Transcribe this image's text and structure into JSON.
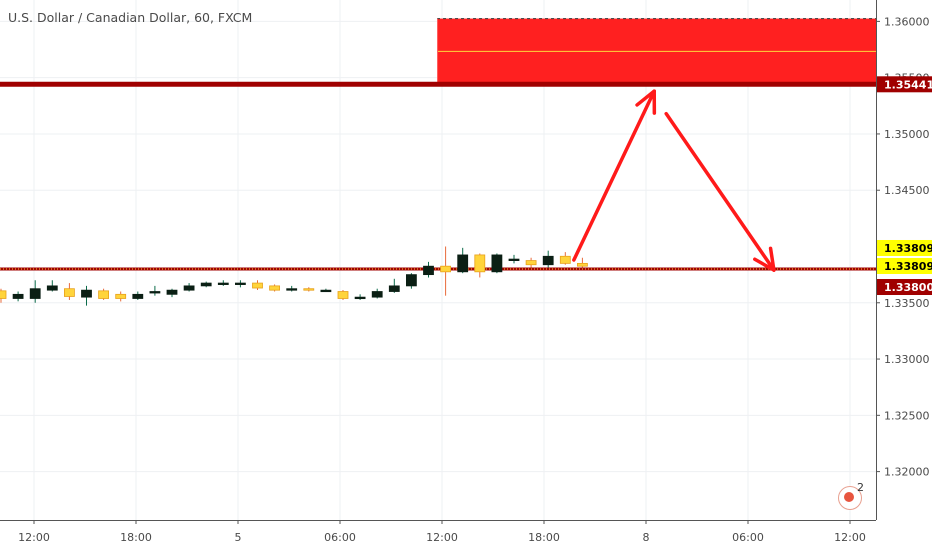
{
  "header": {
    "title": "U.S. Dollar / Canadian Dollar, 60, FXCM"
  },
  "notification": {
    "count": "2"
  },
  "chart_data": {
    "type": "candlestick",
    "symbol": "U.S. Dollar / Canadian Dollar",
    "interval": "60",
    "source": "FXCM",
    "x_tick_labels": [
      "12:00",
      "18:00",
      "5",
      "06:00",
      "12:00",
      "18:00",
      "8",
      "06:00",
      "12:00"
    ],
    "y_ticks": [
      "1.36000",
      "1.35500",
      "1.35000",
      "1.34500",
      "1.33500",
      "1.33000",
      "1.32500",
      "1.32000"
    ],
    "ylim": [
      1.3157,
      1.3619
    ],
    "candles": [
      {
        "open": 1.33606,
        "close": 1.33538,
        "high": 1.33625,
        "low": 1.335
      },
      {
        "open": 1.33538,
        "close": 1.33575,
        "high": 1.336,
        "low": 1.33513
      },
      {
        "open": 1.33538,
        "close": 1.33625,
        "high": 1.337,
        "low": 1.335
      },
      {
        "open": 1.33612,
        "close": 1.3365,
        "high": 1.337,
        "low": 1.336
      },
      {
        "open": 1.33625,
        "close": 1.33556,
        "high": 1.33675,
        "low": 1.33525
      },
      {
        "open": 1.3355,
        "close": 1.33612,
        "high": 1.3365,
        "low": 1.33475
      },
      {
        "open": 1.33606,
        "close": 1.33538,
        "high": 1.33625,
        "low": 1.33525
      },
      {
        "open": 1.33575,
        "close": 1.33538,
        "high": 1.336,
        "low": 1.33512
      },
      {
        "open": 1.33538,
        "close": 1.33575,
        "high": 1.336,
        "low": 1.33525
      },
      {
        "open": 1.336,
        "close": 1.336,
        "high": 1.3365,
        "low": 1.33563
      },
      {
        "open": 1.33575,
        "close": 1.33612,
        "high": 1.33625,
        "low": 1.3355
      },
      {
        "open": 1.33612,
        "close": 1.3365,
        "high": 1.33675,
        "low": 1.336
      },
      {
        "open": 1.3365,
        "close": 1.33675,
        "high": 1.33688,
        "low": 1.33638
      },
      {
        "open": 1.33675,
        "close": 1.33675,
        "high": 1.337,
        "low": 1.3365
      },
      {
        "open": 1.33675,
        "close": 1.33675,
        "high": 1.337,
        "low": 1.33637
      },
      {
        "open": 1.33675,
        "close": 1.33631,
        "high": 1.337,
        "low": 1.33613
      },
      {
        "open": 1.3365,
        "close": 1.33612,
        "high": 1.33663,
        "low": 1.336
      },
      {
        "open": 1.33625,
        "close": 1.33625,
        "high": 1.3365,
        "low": 1.336
      },
      {
        "open": 1.33625,
        "close": 1.33612,
        "high": 1.33638,
        "low": 1.336
      },
      {
        "open": 1.33612,
        "close": 1.33612,
        "high": 1.33625,
        "low": 1.336
      },
      {
        "open": 1.336,
        "close": 1.33538,
        "high": 1.33613,
        "low": 1.33525
      },
      {
        "open": 1.3355,
        "close": 1.3355,
        "high": 1.33575,
        "low": 1.33525
      },
      {
        "open": 1.3355,
        "close": 1.336,
        "high": 1.33625,
        "low": 1.33538
      },
      {
        "open": 1.336,
        "close": 1.3365,
        "high": 1.33713,
        "low": 1.33588
      },
      {
        "open": 1.3365,
        "close": 1.3375,
        "high": 1.33763,
        "low": 1.33625
      },
      {
        "open": 1.3375,
        "close": 1.33825,
        "high": 1.33863,
        "low": 1.33725
      },
      {
        "open": 1.33825,
        "close": 1.33775,
        "high": 1.34,
        "low": 1.33563
      },
      {
        "open": 1.33775,
        "close": 1.33925,
        "high": 1.33988,
        "low": 1.33763
      },
      {
        "open": 1.33925,
        "close": 1.33775,
        "high": 1.33938,
        "low": 1.33725
      },
      {
        "open": 1.33775,
        "close": 1.33925,
        "high": 1.33938,
        "low": 1.33763
      },
      {
        "open": 1.33888,
        "close": 1.33888,
        "high": 1.33925,
        "low": 1.3385
      },
      {
        "open": 1.33875,
        "close": 1.33838,
        "high": 1.339,
        "low": 1.33813
      },
      {
        "open": 1.33838,
        "close": 1.33913,
        "high": 1.33963,
        "low": 1.33813
      },
      {
        "open": 1.33913,
        "close": 1.3385,
        "high": 1.3395,
        "low": 1.33838
      },
      {
        "open": 1.3385,
        "close": 1.33825,
        "high": 1.339,
        "low": 1.33813
      }
    ],
    "horizontal_lines": [
      {
        "price": 1.35441,
        "label": "1.35441",
        "color": "#a00000"
      },
      {
        "price": 1.338,
        "label": "1.33800",
        "color": "#a00000"
      }
    ],
    "price_labels": [
      {
        "price": 1.33809,
        "label": "1.33809",
        "color": "#ffff00"
      },
      {
        "price": 1.33809,
        "label": "1.33809",
        "color": "#ffff00"
      }
    ],
    "zone": {
      "from_candle": 25.5,
      "to_price_high": 1.36025,
      "to_price_low": 1.35441,
      "color": "#ff2020"
    },
    "arrows": [
      {
        "from": {
          "candle": 33.5,
          "price": 1.3388
        },
        "to": {
          "candle": 38.2,
          "price": 1.3538
        }
      },
      {
        "from": {
          "candle": 38.9,
          "price": 1.3518
        },
        "to": {
          "candle": 45.2,
          "price": 1.3379
        }
      }
    ],
    "colors": {
      "up": "#0b1f14",
      "down": "#ffd43b",
      "red": "#ff2020",
      "dark_red": "#a00000"
    }
  }
}
